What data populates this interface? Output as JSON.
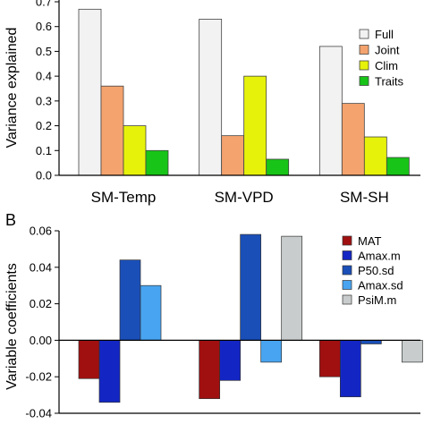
{
  "chart_data": [
    {
      "type": "bar",
      "panel_label": "",
      "categories": [
        "SM-Temp",
        "SM-VPD",
        "SM-SH"
      ],
      "series": [
        {
          "name": "Full",
          "color": "#f2f2f2",
          "values": [
            0.67,
            0.63,
            0.52
          ]
        },
        {
          "name": "Joint",
          "color": "#f4a36e",
          "values": [
            0.36,
            0.16,
            0.29
          ]
        },
        {
          "name": "Clim",
          "color": "#e6f20a",
          "values": [
            0.2,
            0.4,
            0.155
          ]
        },
        {
          "name": "Traits",
          "color": "#18c418",
          "values": [
            0.1,
            0.065,
            0.072
          ]
        }
      ],
      "ylabel": "Variance explained",
      "yticks": [
        "0.0",
        "0.1",
        "0.2",
        "0.3",
        "0.4",
        "0.5",
        "0.6",
        "0.7"
      ],
      "ylim": [
        0,
        0.7
      ],
      "legend": "right"
    },
    {
      "type": "bar",
      "panel_label": "B",
      "group_count": 3,
      "series": [
        {
          "name": "MAT",
          "color": "#a01010",
          "values": [
            -0.021,
            -0.032,
            -0.02
          ]
        },
        {
          "name": "Amax.m",
          "color": "#1326c4",
          "values": [
            -0.034,
            -0.022,
            -0.031
          ]
        },
        {
          "name": "P50.sd",
          "color": "#1a4fb8",
          "values": [
            0.044,
            0.058,
            -0.002
          ]
        },
        {
          "name": "Amax.sd",
          "color": "#48a4f0",
          "values": [
            0.03,
            -0.012,
            0
          ]
        },
        {
          "name": "PsiM.m",
          "color": "#c8cccc",
          "values": [
            0,
            0.057,
            -0.012
          ]
        }
      ],
      "ylabel": "Variable coefficients",
      "yticks": [
        "-0.04",
        "-0.02",
        "0.00",
        "0.02",
        "0.04",
        "0.06"
      ],
      "ylim": [
        -0.04,
        0.06
      ],
      "legend": "top-right"
    }
  ]
}
